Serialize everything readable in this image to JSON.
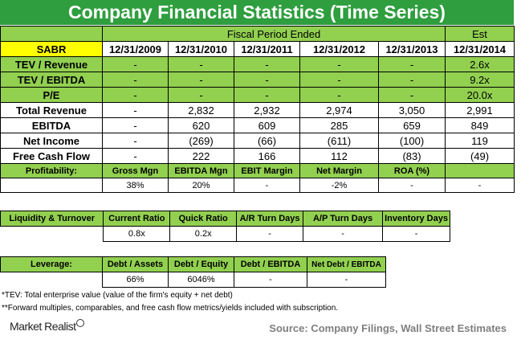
{
  "title": "Company Financial Statistics (Time Series)",
  "ticker": "SABR",
  "period_header": "Fiscal Period Ended",
  "est_header": "Est",
  "dates": [
    "12/31/2009",
    "12/31/2010",
    "12/31/2011",
    "12/31/2012",
    "12/31/2013",
    "12/31/2014"
  ],
  "colors": {
    "title_bg": "#2e9e3e",
    "label_bg": "#92d050",
    "header_bg": "#ffff00"
  },
  "rows": [
    {
      "label": "TEV / Revenue",
      "values": [
        "-",
        "-",
        "-",
        "-",
        "-",
        "2.6x"
      ]
    },
    {
      "label": "TEV / EBITDA",
      "values": [
        "-",
        "-",
        "-",
        "-",
        "-",
        "9.2x"
      ]
    },
    {
      "label": "P/E",
      "values": [
        "-",
        "-",
        "-",
        "-",
        "-",
        "20.0x"
      ]
    },
    {
      "label": "Total Revenue",
      "values": [
        "-",
        "2,832",
        "2,932",
        "2,974",
        "3,050",
        "2,991"
      ]
    },
    {
      "label": "EBITDA",
      "values": [
        "-",
        "620",
        "609",
        "285",
        "659",
        "849"
      ]
    },
    {
      "label": "Net Income",
      "values": [
        "-",
        "(269)",
        "(66)",
        "(611)",
        "(100)",
        "119"
      ]
    },
    {
      "label": "Free Cash Flow",
      "values": [
        "-",
        "222",
        "166",
        "112",
        "(83)",
        "(49)"
      ]
    }
  ],
  "profitability": {
    "label": "Profitability:",
    "headers": [
      "Gross Mgn",
      "EBITDA Mgn",
      "EBIT Margin",
      "Net Margin",
      "ROA (%)",
      ""
    ],
    "values": [
      "38%",
      "20%",
      "-",
      "-2%",
      "-",
      "-"
    ]
  },
  "liquidity": {
    "label": "Liquidity & Turnover",
    "headers": [
      "Current Ratio",
      "Quick Ratio",
      "A/R Turn Days",
      "A/P Turn Days",
      "Inventory Days"
    ],
    "values": [
      "0.8x",
      "0.2x",
      "-",
      "-",
      "-"
    ]
  },
  "leverage": {
    "label": "Leverage:",
    "headers": [
      "Debt / Assets",
      "Debt / Equity",
      "Debt / EBITDA",
      "Net Debt / EBITDA"
    ],
    "values": [
      "66%",
      "6046%",
      "-",
      "-"
    ]
  },
  "notes": [
    "*TEV: Total enterprise value (value of the firm's equity + net debt)",
    "**Forward multiples, comparables, and free cash flow metrics/yields included with subscription."
  ],
  "brand": "Market Realist",
  "source": "Source: Company Filings, Wall Street Estimates"
}
